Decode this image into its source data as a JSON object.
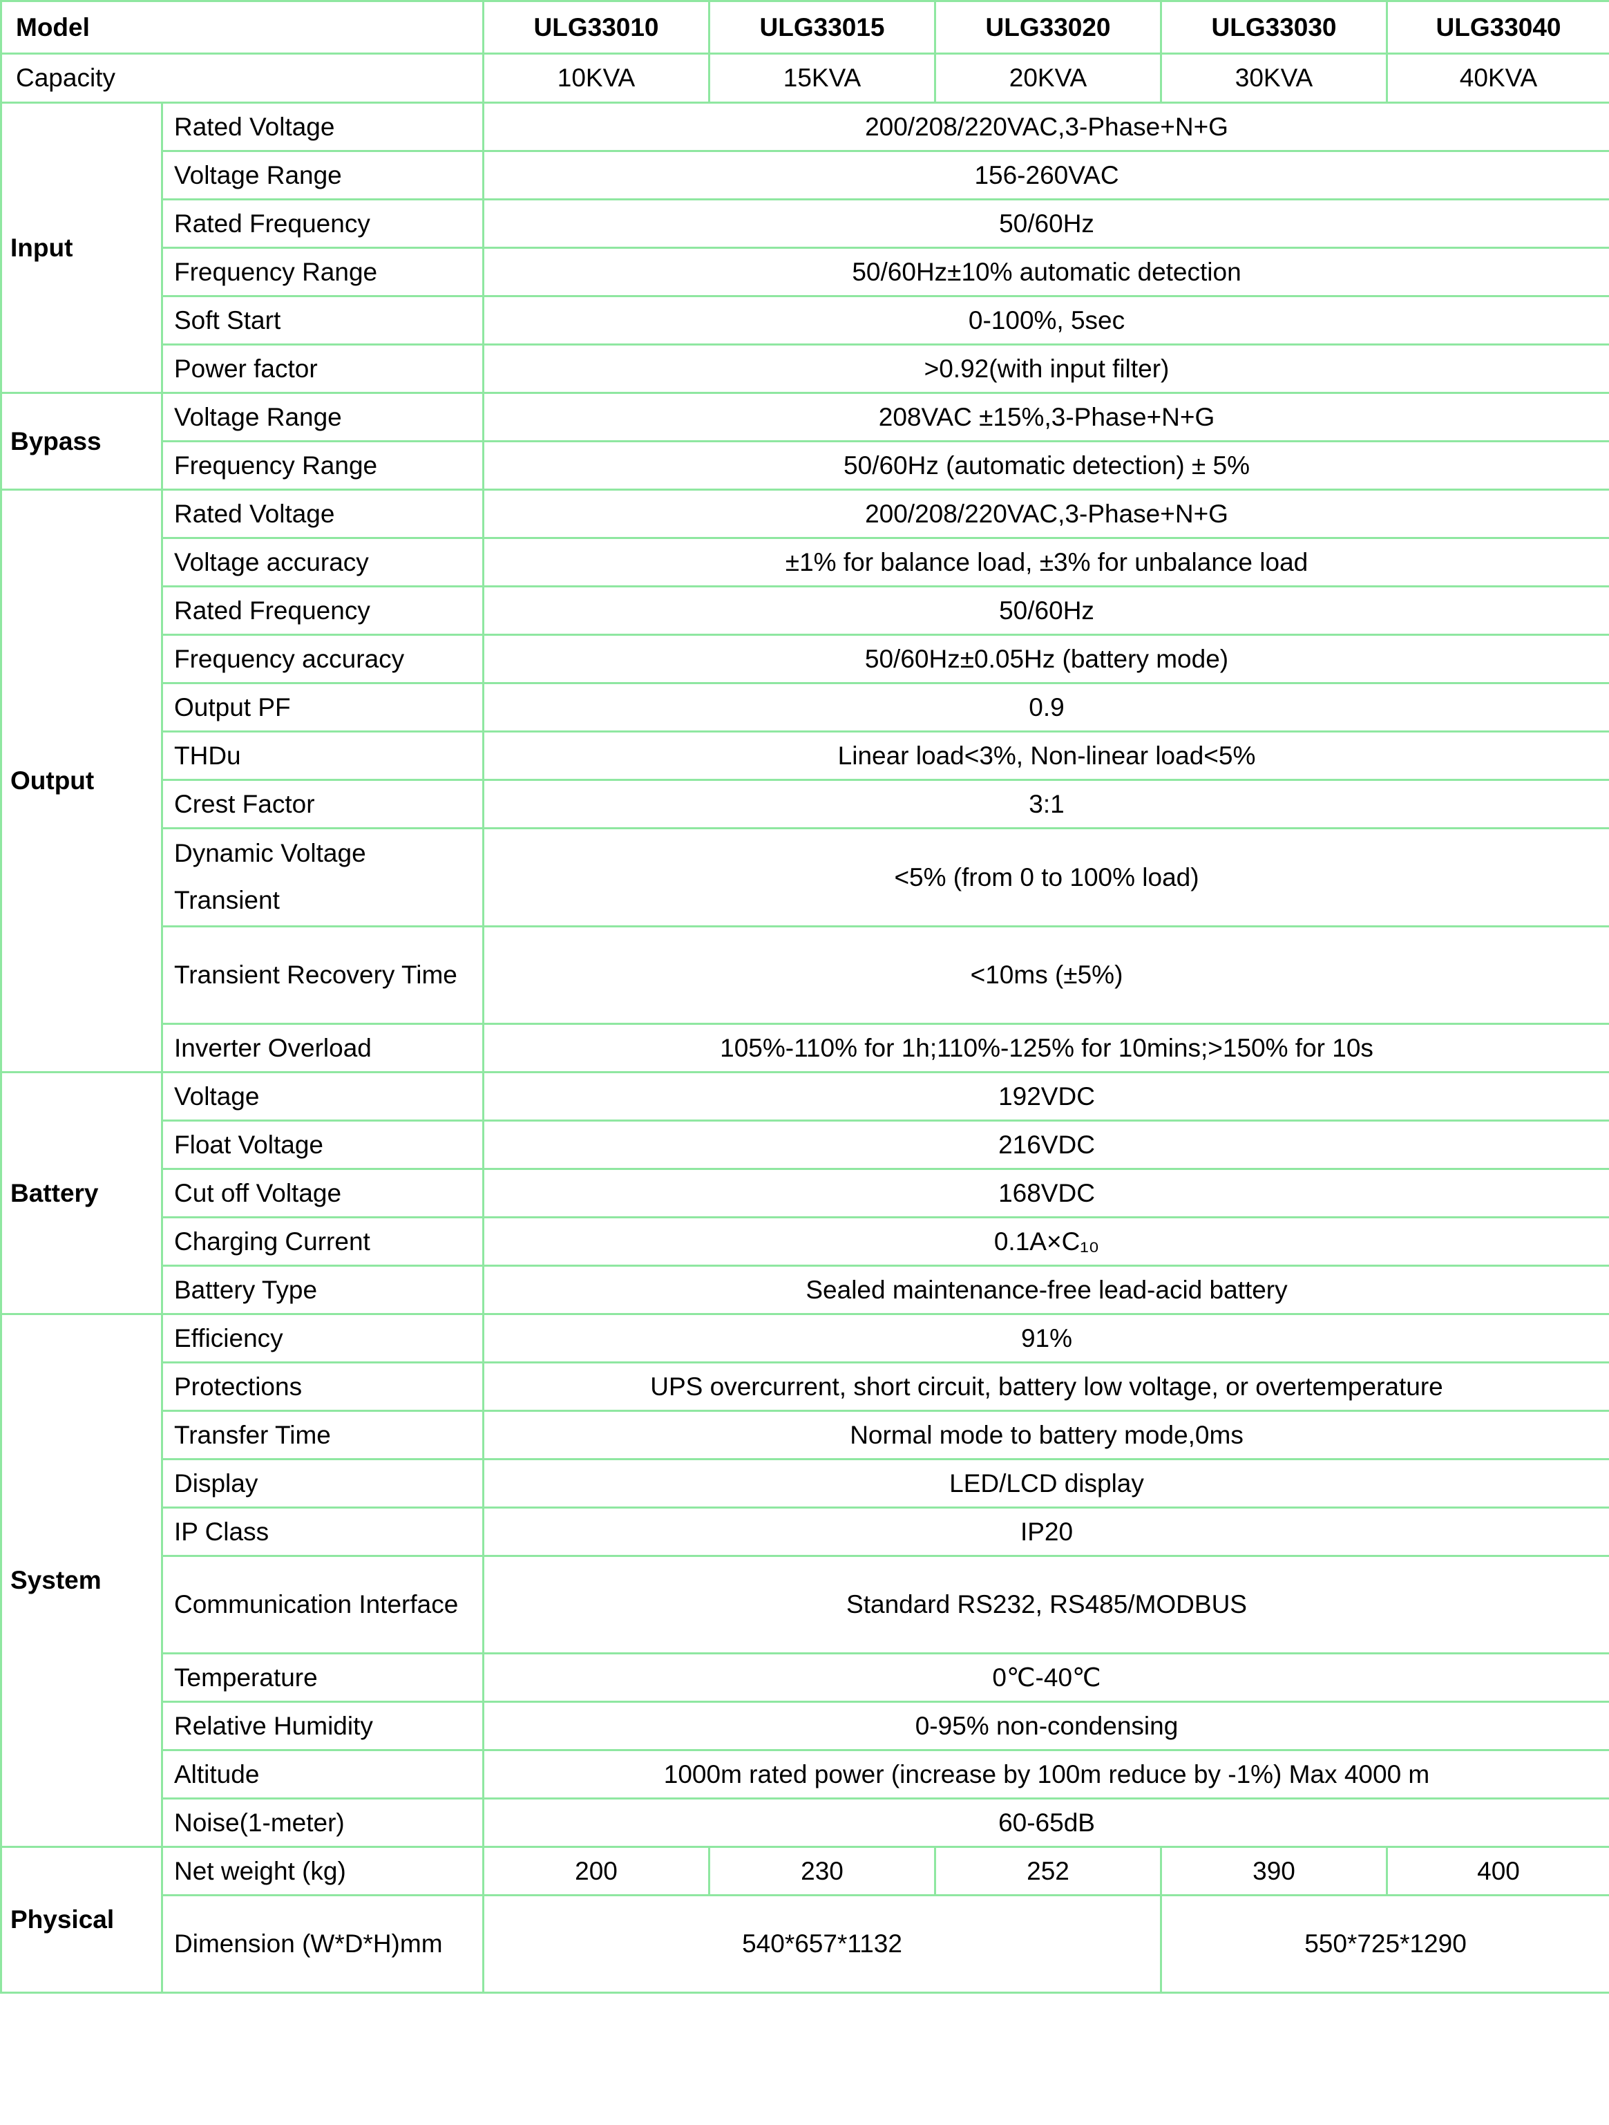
{
  "colors": {
    "green_fill": "#c5f9d5",
    "grid_line": "#8fe7a1",
    "text": "#000000"
  },
  "header": {
    "model_label": "Model",
    "capacity_label": "Capacity",
    "models": [
      "ULG33010",
      "ULG33015",
      "ULG33020",
      "ULG33030",
      "ULG33040"
    ],
    "capacities": [
      "10KVA",
      "15KVA",
      "20KVA",
      "30KVA",
      "40KVA"
    ]
  },
  "sections": [
    {
      "name": "Input",
      "rows": [
        {
          "label": "Rated Voltage",
          "value": "200/208/220VAC,3-Phase+N+G"
        },
        {
          "label": "Voltage Range",
          "value": "156-260VAC"
        },
        {
          "label": "Rated Frequency",
          "value": "50/60Hz"
        },
        {
          "label": "Frequency Range",
          "value": "50/60Hz±10% automatic detection"
        },
        {
          "label": "Soft Start",
          "value": "0-100%, 5sec"
        },
        {
          "label": "Power factor",
          "value": ">0.92(with input filter)"
        }
      ]
    },
    {
      "name": "Bypass",
      "rows": [
        {
          "label": "Voltage Range",
          "value": "208VAC ±15%,3-Phase+N+G"
        },
        {
          "label": "Frequency Range",
          "value": "50/60Hz (automatic detection) ± 5%"
        }
      ]
    },
    {
      "name": "Output",
      "rows": [
        {
          "label": "Rated Voltage",
          "value": "200/208/220VAC,3-Phase+N+G"
        },
        {
          "label": "Voltage accuracy",
          "value": "±1% for balance load, ±3% for unbalance load"
        },
        {
          "label": "Rated Frequency",
          "value": "50/60Hz"
        },
        {
          "label": "Frequency accuracy",
          "value": "50/60Hz±0.05Hz (battery mode)"
        },
        {
          "label": "Output PF",
          "value": "0.9"
        },
        {
          "label": "THDu",
          "value": "Linear load<3%, Non-linear load<5%"
        },
        {
          "label": "Crest Factor",
          "value": "3:1"
        },
        {
          "label": "Dynamic Voltage Transient",
          "value": "<5% (from 0 to 100% load)",
          "tall": true
        },
        {
          "label": "Transient Recovery Time",
          "value": "<10ms (±5%)",
          "tall": true
        },
        {
          "label": "Inverter Overload",
          "value": "105%-110% for 1h;110%-125% for 10mins;>150% for 10s"
        }
      ]
    },
    {
      "name": "Battery",
      "rows": [
        {
          "label": "Voltage",
          "value": "192VDC"
        },
        {
          "label": "Float Voltage",
          "value": "216VDC"
        },
        {
          "label": "Cut off Voltage",
          "value": "168VDC"
        },
        {
          "label": "Charging Current",
          "value": "0.1A×C₁₀"
        },
        {
          "label": "Battery Type",
          "value": "Sealed maintenance-free lead-acid battery"
        }
      ]
    },
    {
      "name": "System",
      "rows": [
        {
          "label": "Efficiency",
          "value": "91%"
        },
        {
          "label": "Protections",
          "value": "UPS overcurrent, short circuit, battery low voltage, or overtemperature"
        },
        {
          "label": "Transfer Time",
          "value": "Normal mode to battery mode,0ms"
        },
        {
          "label": "Display",
          "value": "LED/LCD display"
        },
        {
          "label": "IP Class",
          "value": "IP20"
        },
        {
          "label": "Communication Interface",
          "value": "Standard RS232, RS485/MODBUS",
          "tall": true
        },
        {
          "label": "Temperature",
          "value": "0℃-40℃"
        },
        {
          "label": "Relative Humidity",
          "value": "0-95% non-condensing"
        },
        {
          "label": "Altitude",
          "value": "1000m rated power (increase by 100m reduce by -1%) Max 4000 m"
        },
        {
          "label": "Noise(1-meter)",
          "value": "60-65dB"
        }
      ]
    },
    {
      "name": "Physical",
      "rows": [
        {
          "label": "Net weight (kg)",
          "cells": [
            {
              "value": "200",
              "span": 1
            },
            {
              "value": "230",
              "span": 1
            },
            {
              "value": "252",
              "span": 1
            },
            {
              "value": "390",
              "span": 1
            },
            {
              "value": "400",
              "span": 1
            }
          ]
        },
        {
          "label": "Dimension (W*D*H)mm",
          "tall": true,
          "cells": [
            {
              "value": "540*657*1132",
              "span": 3
            },
            {
              "value": "550*725*1290",
              "span": 2
            }
          ]
        }
      ]
    }
  ]
}
